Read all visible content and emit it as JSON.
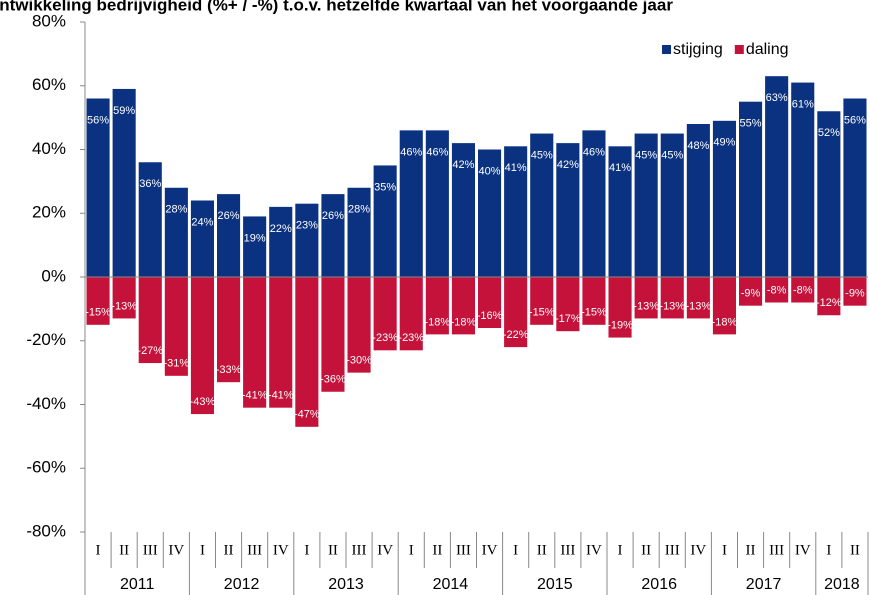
{
  "chart_data": {
    "type": "bar",
    "title": "Ontwikkeling bedrijvigheid (%+ / -%) t.o.v. hetzelfde kwartaal van het voorgaande jaar",
    "categories": [
      "I",
      "II",
      "III",
      "IV",
      "I",
      "II",
      "III",
      "IV",
      "I",
      "II",
      "III",
      "IV",
      "I",
      "II",
      "III",
      "IV",
      "I",
      "II",
      "III",
      "IV",
      "I",
      "II",
      "III",
      "IV",
      "I",
      "II",
      "III",
      "IV",
      "I",
      "II"
    ],
    "years": [
      "2011",
      "2012",
      "2013",
      "2014",
      "2015",
      "2016",
      "2017",
      "2018"
    ],
    "series": [
      {
        "name": "stijging",
        "color": "#0a3280",
        "values": [
          56,
          59,
          36,
          28,
          24,
          26,
          19,
          22,
          23,
          26,
          28,
          35,
          46,
          46,
          42,
          40,
          41,
          45,
          42,
          46,
          41,
          45,
          45,
          48,
          49,
          55,
          63,
          61,
          52,
          56
        ],
        "value_labels": [
          "56%",
          "59%",
          "36%",
          "28%",
          "24%",
          "26%",
          "19%",
          "22%",
          "23%",
          "26%",
          "28%",
          "35%",
          "46%",
          "46%",
          "42%",
          "40%",
          "41%",
          "45%",
          "42%",
          "46%",
          "41%",
          "45%",
          "45%",
          "48%",
          "49%",
          "55%",
          "63%",
          "61%",
          "52%",
          "56%"
        ]
      },
      {
        "name": "daling",
        "color": "#c4123a",
        "values": [
          -15,
          -13,
          -27,
          -31,
          -43,
          -33,
          -41,
          -41,
          -47,
          -36,
          -30,
          -23,
          -23,
          -18,
          -18,
          -16,
          -22,
          -15,
          -17,
          -15,
          -19,
          -13,
          -13,
          -13,
          -18,
          -9,
          -8,
          -8,
          -12,
          -9
        ],
        "value_labels": [
          "-15%",
          "-13%",
          "-27%",
          "-31%",
          "-43%",
          "-33%",
          "-41%",
          "-41%",
          "-47%",
          "-36%",
          "-30%",
          "-23%",
          "-23%",
          "-18%",
          "-18%",
          "-16%",
          "-22%",
          "-15%",
          "-17%",
          "-15%",
          "-19%",
          "-13%",
          "-13%",
          "-13%",
          "-18%",
          "-9%",
          "-8%",
          "-8%",
          "-12%",
          "-9%"
        ]
      }
    ],
    "ylim": [
      -80,
      80
    ],
    "yticks": [
      {
        "value": -80,
        "label": "-80%"
      },
      {
        "value": -60,
        "label": "-60%"
      },
      {
        "value": -40,
        "label": "-40%"
      },
      {
        "value": -20,
        "label": "-20%"
      },
      {
        "value": 0,
        "label": "0%"
      },
      {
        "value": 20,
        "label": "20%"
      },
      {
        "value": 40,
        "label": "40%"
      },
      {
        "value": 60,
        "label": "60%"
      },
      {
        "value": 80,
        "label": "80%"
      }
    ],
    "legend": "top-right"
  }
}
